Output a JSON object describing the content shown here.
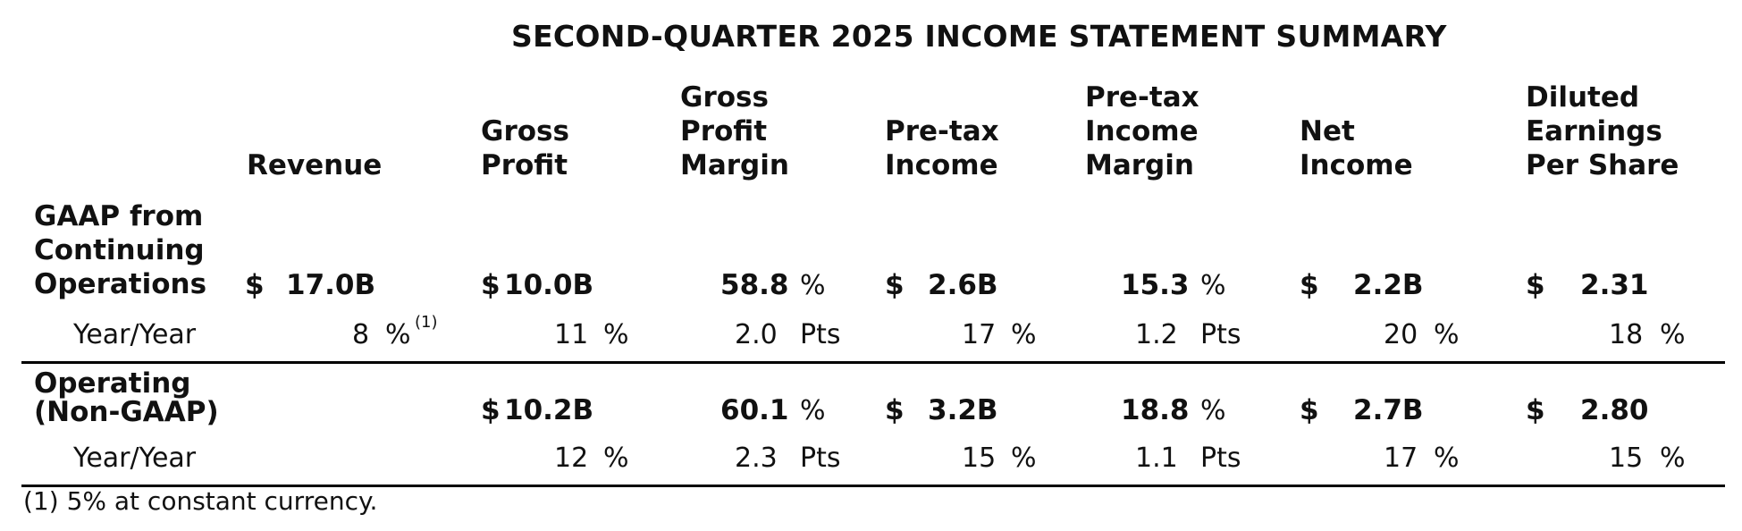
{
  "title": "SECOND-QUARTER 2025 INCOME STATEMENT SUMMARY",
  "columns": {
    "revenue": "Revenue",
    "gross_profit": "Gross Profit",
    "gross_profit_margin": "Gross Profit Margin",
    "pretax_income": "Pre-tax Income",
    "pretax_income_margin": "Pre-tax Income Margin",
    "net_income": "Net Income",
    "diluted_eps": "Diluted Earnings Per Share"
  },
  "gaap": {
    "label": "GAAP from Continuing Operations",
    "revenue_cur": "$",
    "revenue": "17.0B",
    "gross_profit_cur": "$",
    "gross_profit": "10.0B",
    "gross_profit_margin": "58.8",
    "gross_profit_margin_unit": "%",
    "pretax_income_cur": "$",
    "pretax_income": "2.6B",
    "pretax_income_margin": "15.3",
    "pretax_income_margin_unit": "%",
    "net_income_cur": "$",
    "net_income": "2.2B",
    "eps_cur": "$",
    "eps": "2.31"
  },
  "gaap_yoy": {
    "label": "Year/Year",
    "revenue": "8",
    "revenue_unit": "%",
    "revenue_note": "(1)",
    "gross_profit": "11",
    "gross_profit_unit": "%",
    "gross_profit_margin": "2.0",
    "gross_profit_margin_unit": "Pts",
    "pretax_income": "17",
    "pretax_income_unit": "%",
    "pretax_income_margin": "1.2",
    "pretax_income_margin_unit": "Pts",
    "net_income": "20",
    "net_income_unit": "%",
    "eps": "18",
    "eps_unit": "%"
  },
  "operating": {
    "label": "Operating (Non-GAAP)",
    "gross_profit_cur": "$",
    "gross_profit": "10.2B",
    "gross_profit_margin": "60.1",
    "gross_profit_margin_unit": "%",
    "pretax_income_cur": "$",
    "pretax_income": "3.2B",
    "pretax_income_margin": "18.8",
    "pretax_income_margin_unit": "%",
    "net_income_cur": "$",
    "net_income": "2.7B",
    "eps_cur": "$",
    "eps": "2.80"
  },
  "operating_yoy": {
    "label": "Year/Year",
    "gross_profit": "12",
    "gross_profit_unit": "%",
    "gross_profit_margin": "2.3",
    "gross_profit_margin_unit": "Pts",
    "pretax_income": "15",
    "pretax_income_unit": "%",
    "pretax_income_margin": "1.1",
    "pretax_income_margin_unit": "Pts",
    "net_income": "17",
    "net_income_unit": "%",
    "eps": "15",
    "eps_unit": "%"
  },
  "footnote": "(1)  5% at constant currency."
}
